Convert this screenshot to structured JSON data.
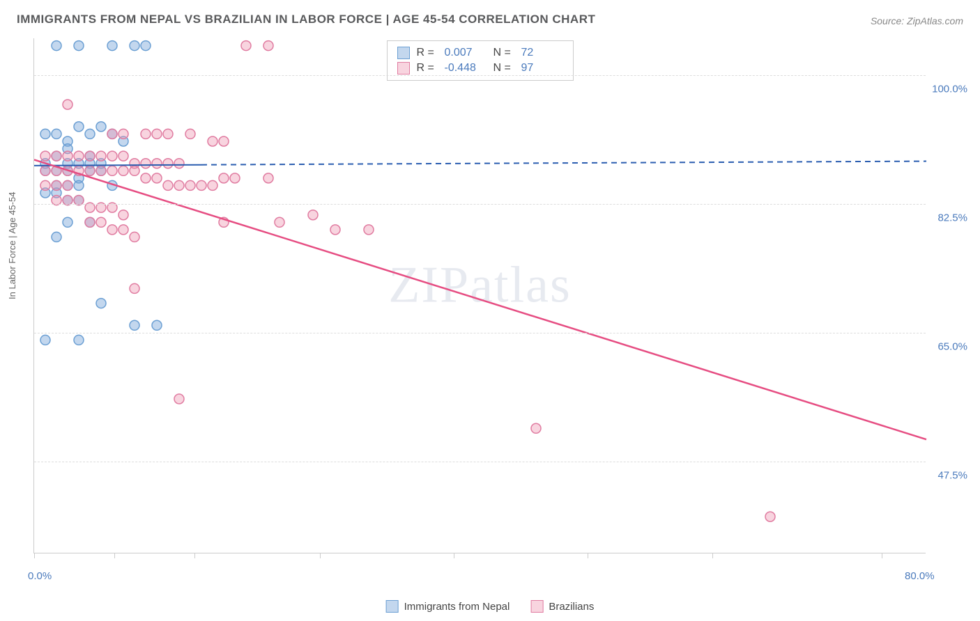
{
  "title": "IMMIGRANTS FROM NEPAL VS BRAZILIAN IN LABOR FORCE | AGE 45-54 CORRELATION CHART",
  "source": "Source: ZipAtlas.com",
  "watermark": "ZIPatlas",
  "yaxis_title": "In Labor Force | Age 45-54",
  "chart": {
    "type": "scatter",
    "xlim": [
      0,
      80
    ],
    "ylim": [
      35,
      105
    ],
    "xtick_labels": {
      "min": "0.0%",
      "max": "80.0%"
    },
    "xtick_positions_pct_of_width": [
      0,
      9,
      18,
      32,
      47,
      62,
      76,
      95
    ],
    "ytick_values": [
      47.5,
      65.0,
      82.5,
      100.0
    ],
    "ytick_labels": [
      "47.5%",
      "65.0%",
      "82.5%",
      "100.0%"
    ],
    "grid_color": "#dddddd",
    "background_color": "#ffffff",
    "marker_radius": 7,
    "marker_stroke_width": 1.5,
    "series": [
      {
        "name": "Immigrants from Nepal",
        "fill": "rgba(122,167,217,0.45)",
        "stroke": "#6b9fd3",
        "R": "0.007",
        "N": "72",
        "trend": {
          "x1": 0,
          "y1": 87.7,
          "x2": 80,
          "y2": 88.3,
          "seg1_end_x": 15,
          "color": "#2a5db0",
          "width": 2,
          "dash_after": true
        },
        "points": [
          [
            2,
            104
          ],
          [
            4,
            104
          ],
          [
            7,
            104
          ],
          [
            9,
            104
          ],
          [
            10,
            104
          ],
          [
            1,
            92
          ],
          [
            2,
            92
          ],
          [
            3,
            91
          ],
          [
            4,
            93
          ],
          [
            5,
            92
          ],
          [
            6,
            93
          ],
          [
            7,
            92
          ],
          [
            8,
            91
          ],
          [
            3,
            90
          ],
          [
            5,
            89
          ],
          [
            1,
            88
          ],
          [
            2,
            89
          ],
          [
            3,
            88
          ],
          [
            4,
            88
          ],
          [
            5,
            88
          ],
          [
            6,
            88
          ],
          [
            1,
            87
          ],
          [
            2,
            87
          ],
          [
            3,
            87
          ],
          [
            4,
            86
          ],
          [
            5,
            87
          ],
          [
            6,
            87
          ],
          [
            2,
            85
          ],
          [
            3,
            85
          ],
          [
            4,
            85
          ],
          [
            7,
            85
          ],
          [
            1,
            84
          ],
          [
            2,
            84
          ],
          [
            3,
            83
          ],
          [
            4,
            83
          ],
          [
            3,
            80
          ],
          [
            5,
            80
          ],
          [
            2,
            78
          ],
          [
            6,
            69
          ],
          [
            9,
            66
          ],
          [
            11,
            66
          ],
          [
            1,
            64
          ],
          [
            4,
            64
          ]
        ]
      },
      {
        "name": "Brazilians",
        "fill": "rgba(238,147,175,0.40)",
        "stroke": "#e07ba0",
        "R": "-0.448",
        "N": "97",
        "trend": {
          "x1": 0,
          "y1": 88.5,
          "x2": 80,
          "y2": 50.5,
          "color": "#e64d82",
          "width": 2.5,
          "dash_after": false
        },
        "points": [
          [
            19,
            104
          ],
          [
            21,
            104
          ],
          [
            3,
            96
          ],
          [
            7,
            92
          ],
          [
            8,
            92
          ],
          [
            10,
            92
          ],
          [
            11,
            92
          ],
          [
            12,
            92
          ],
          [
            14,
            92
          ],
          [
            16,
            91
          ],
          [
            17,
            91
          ],
          [
            1,
            89
          ],
          [
            2,
            89
          ],
          [
            3,
            89
          ],
          [
            4,
            89
          ],
          [
            5,
            89
          ],
          [
            6,
            89
          ],
          [
            7,
            89
          ],
          [
            8,
            89
          ],
          [
            9,
            88
          ],
          [
            10,
            88
          ],
          [
            11,
            88
          ],
          [
            12,
            88
          ],
          [
            13,
            88
          ],
          [
            1,
            87
          ],
          [
            2,
            87
          ],
          [
            3,
            87
          ],
          [
            4,
            87
          ],
          [
            5,
            87
          ],
          [
            6,
            87
          ],
          [
            7,
            87
          ],
          [
            8,
            87
          ],
          [
            9,
            87
          ],
          [
            10,
            86
          ],
          [
            11,
            86
          ],
          [
            12,
            85
          ],
          [
            13,
            85
          ],
          [
            1,
            85
          ],
          [
            2,
            85
          ],
          [
            3,
            85
          ],
          [
            14,
            85
          ],
          [
            15,
            85
          ],
          [
            16,
            85
          ],
          [
            17,
            86
          ],
          [
            18,
            86
          ],
          [
            21,
            86
          ],
          [
            2,
            83
          ],
          [
            3,
            83
          ],
          [
            4,
            83
          ],
          [
            5,
            82
          ],
          [
            6,
            82
          ],
          [
            7,
            82
          ],
          [
            8,
            81
          ],
          [
            5,
            80
          ],
          [
            6,
            80
          ],
          [
            7,
            79
          ],
          [
            8,
            79
          ],
          [
            9,
            78
          ],
          [
            17,
            80
          ],
          [
            22,
            80
          ],
          [
            25,
            81
          ],
          [
            27,
            79
          ],
          [
            30,
            79
          ],
          [
            13,
            56
          ],
          [
            9,
            71
          ],
          [
            45,
            52
          ],
          [
            66,
            40
          ]
        ]
      }
    ]
  },
  "legend_top": {
    "labels": {
      "R": "R =",
      "N": "N ="
    }
  },
  "legend_bottom_items": [
    "Immigrants from Nepal",
    "Brazilians"
  ]
}
